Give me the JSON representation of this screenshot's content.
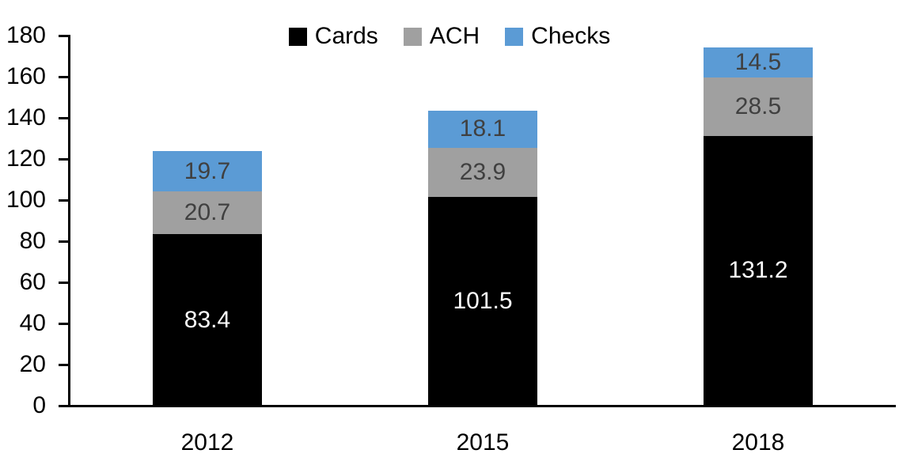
{
  "chart_data": {
    "type": "bar",
    "stacked": true,
    "title": "",
    "xlabel": "",
    "ylabel": "",
    "categories": [
      "2012",
      "2015",
      "2018"
    ],
    "series": [
      {
        "name": "Cards",
        "color": "#000000",
        "label_color": "#ffffff",
        "values": [
          83.4,
          101.5,
          131.2
        ]
      },
      {
        "name": "ACH",
        "color": "#a0a0a0",
        "label_color": "#404040",
        "values": [
          20.7,
          23.9,
          28.5
        ]
      },
      {
        "name": "Checks",
        "color": "#5b9bd5",
        "label_color": "#404040",
        "values": [
          19.7,
          18.1,
          14.5
        ]
      }
    ],
    "totals": [
      123.8,
      143.5,
      174.2
    ],
    "ylim": [
      0,
      180
    ],
    "ytick_step": 20,
    "yticks": [
      0,
      20,
      40,
      60,
      80,
      100,
      120,
      140,
      160,
      180
    ],
    "legend_position": "top",
    "grid": false,
    "axis_color": "#000000",
    "background_color": "#ffffff"
  }
}
